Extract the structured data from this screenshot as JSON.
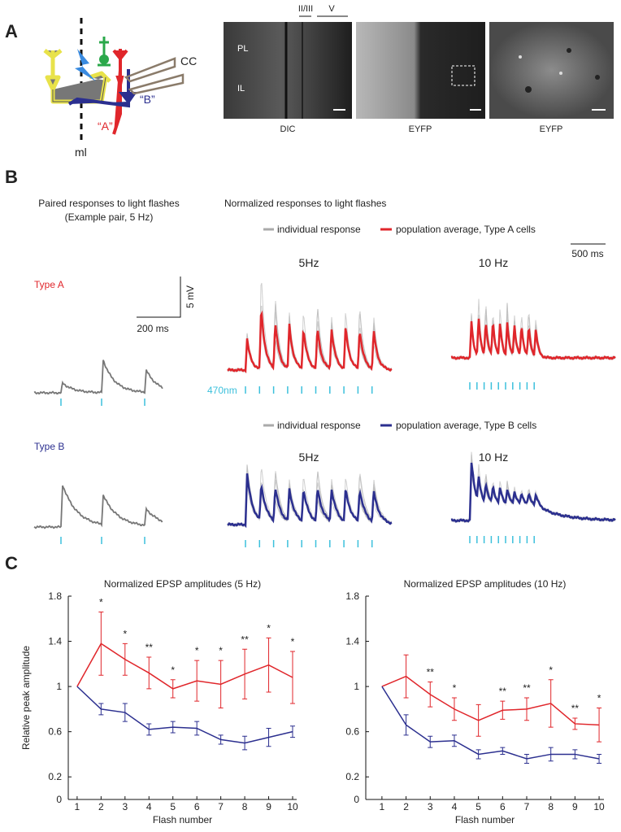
{
  "panel_a": {
    "label": "A",
    "diagram": {
      "cc": "CC",
      "cell_b": "“B”",
      "cell_a": "“A”",
      "midline": "ml"
    },
    "images": {
      "layers": [
        "II/III",
        "V"
      ],
      "regions": [
        "PL",
        "IL"
      ],
      "captions": [
        "DIC",
        "EYFP",
        "EYFP"
      ]
    }
  },
  "panel_b": {
    "label": "B",
    "paired_title": "Paired responses to light flashes",
    "paired_subtitle": "(Example pair, 5 Hz)",
    "normalized_title": "Normalized responses to light flashes",
    "time_scale": "500 ms",
    "voltage_scale": "5 mV",
    "paired_time_scale": "200 ms",
    "stimulus": "470nm",
    "rows": [
      {
        "cell_type": "Type A",
        "legend": [
          "individual response",
          "population average, Type A cells"
        ],
        "conditions": [
          "5Hz",
          "10 Hz"
        ]
      },
      {
        "cell_type": "Type B",
        "legend": [
          "individual response",
          "population average, Type B cells"
        ],
        "conditions": [
          "5Hz",
          "10 Hz"
        ]
      }
    ]
  },
  "panel_c": {
    "label": "C"
  },
  "chart_data": [
    {
      "type": "line",
      "title": "Normalized EPSP amplitudes (5 Hz)",
      "y_label": "Relative peak amplitude",
      "x_label": "Flash number",
      "x": [
        1,
        2,
        3,
        4,
        5,
        6,
        7,
        8,
        9,
        10
      ],
      "xlim": [
        0.63,
        10.17
      ],
      "ylim": [
        0,
        1.8
      ],
      "xticks": [
        1,
        2,
        3,
        4,
        5,
        6,
        7,
        8,
        9,
        10
      ],
      "yticks": [
        0,
        0.2,
        0.6,
        1,
        1.4,
        1.8
      ],
      "series": [
        {
          "color": "#e0262b",
          "values": [
            1,
            1.38,
            1.24,
            1.12,
            0.98,
            1.05,
            1.02,
            1.11,
            1.19,
            1.08
          ],
          "errors": [
            null,
            0.28,
            0.14,
            0.14,
            0.08,
            0.18,
            0.21,
            0.22,
            0.24,
            0.23
          ]
        },
        {
          "color": "#2b2f8f",
          "values": [
            1,
            0.8,
            0.77,
            0.62,
            0.64,
            0.63,
            0.53,
            0.5,
            0.55,
            0.6
          ],
          "errors": [
            null,
            0.05,
            0.08,
            0.05,
            0.05,
            0.06,
            0.04,
            0.06,
            0.08,
            0.05
          ]
        }
      ],
      "annotations": [
        null,
        "*",
        "*",
        "**",
        "*",
        "*",
        "*",
        "**",
        "*",
        "*"
      ]
    },
    {
      "type": "line",
      "title": "Normalized EPSP amplitudes (10 Hz)",
      "x_label": "Flash number",
      "x": [
        1,
        2,
        3,
        4,
        5,
        6,
        7,
        8,
        9,
        10
      ],
      "xlim": [
        0.33,
        10.2
      ],
      "ylim": [
        0,
        1.8
      ],
      "xticks": [
        1,
        2,
        3,
        4,
        5,
        6,
        7,
        8,
        9,
        10
      ],
      "yticks": [
        0,
        0.2,
        0.6,
        1,
        1.4,
        1.8
      ],
      "series": [
        {
          "color": "#e0262b",
          "values": [
            1,
            1.09,
            0.93,
            0.8,
            0.7,
            0.79,
            0.8,
            0.85,
            0.67,
            0.66
          ],
          "errors": [
            null,
            0.19,
            0.11,
            0.1,
            0.14,
            0.08,
            0.1,
            0.21,
            0.05,
            0.15
          ]
        },
        {
          "color": "#2b2f8f",
          "values": [
            1,
            0.66,
            0.51,
            0.52,
            0.4,
            0.43,
            0.36,
            0.4,
            0.4,
            0.36
          ],
          "errors": [
            null,
            0.09,
            0.05,
            0.05,
            0.04,
            0.03,
            0.04,
            0.06,
            0.04,
            0.04
          ]
        }
      ],
      "annotations": [
        null,
        null,
        "**",
        "*",
        null,
        "**",
        "**",
        "*",
        "**",
        "*"
      ]
    }
  ]
}
